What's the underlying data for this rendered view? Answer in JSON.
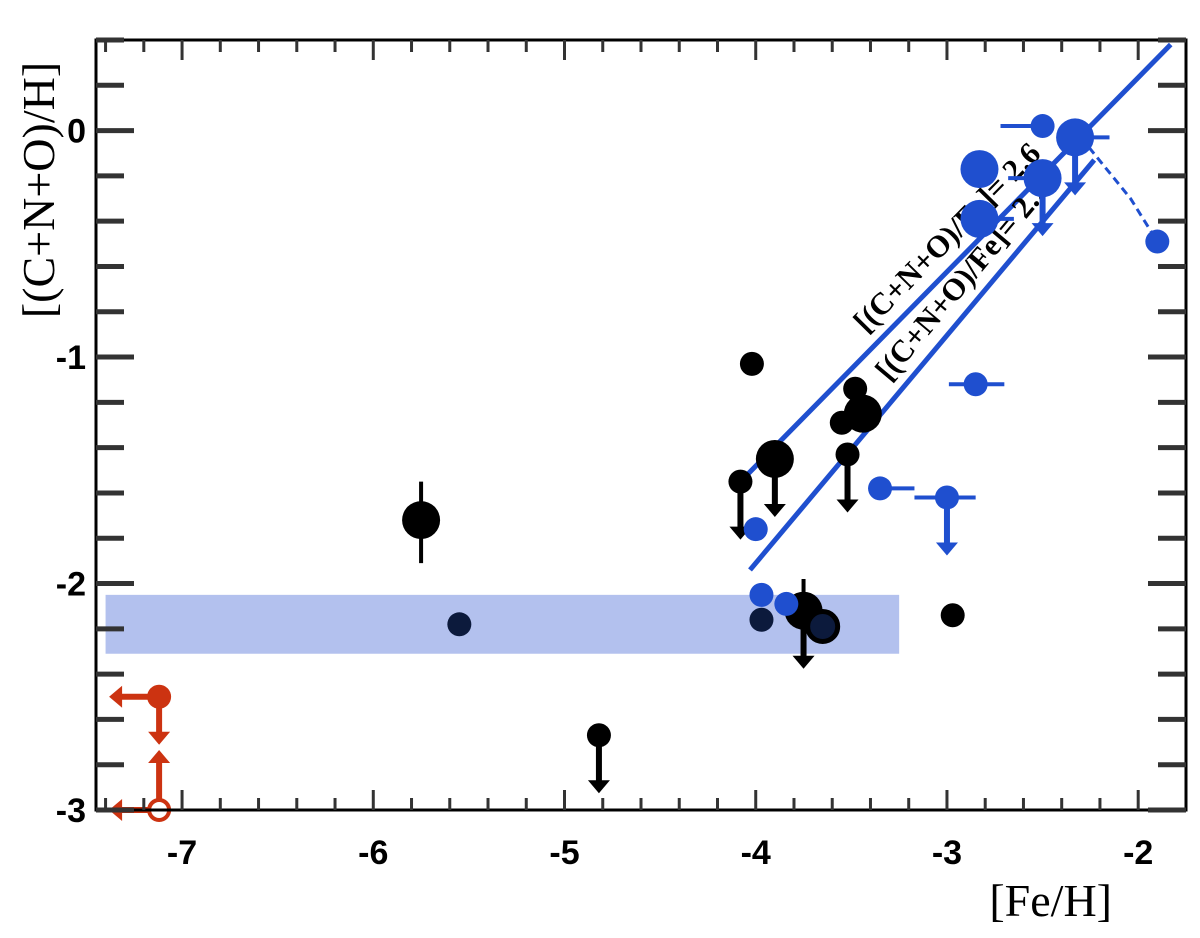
{
  "chart_data": {
    "type": "scatter",
    "xlabel": "[Fe/H]",
    "ylabel": "[(C+N+O)/H]",
    "xlim": [
      -7.45,
      -1.75
    ],
    "ylim": [
      -3.0,
      0.4
    ],
    "x_ticks": [
      -7,
      -6,
      -5,
      -4,
      -3,
      -2
    ],
    "y_ticks": [
      0,
      -1,
      -2,
      -3
    ],
    "x_tick_labels": [
      "-7",
      "-6",
      "-5",
      "-4",
      "-3",
      "-2"
    ],
    "y_tick_labels": [
      "0",
      "-1",
      "-2",
      "-3"
    ],
    "grid": false,
    "colors": {
      "black": "#000000",
      "blue": "#1f4fcf",
      "navy": "#0c1a3c",
      "red": "#cc3311",
      "band": "#b3c1ee"
    },
    "band": {
      "x": [
        -7.4,
        -3.25
      ],
      "y": [
        -2.31,
        -2.05
      ]
    },
    "reference_lines": [
      {
        "label": "[(C+N+O)/Fe]= 2.6",
        "x": [
          -4.08,
          -1.83
        ],
        "y": [
          -1.55,
          0.38
        ]
      },
      {
        "label": "[(C+N+O)/Fe]= 2.2",
        "x": [
          -4.03,
          -2.23
        ],
        "y": [
          -1.94,
          -0.13
        ]
      }
    ],
    "series": [
      {
        "color": "black",
        "points": [
          {
            "x": -5.75,
            "y": -1.72,
            "size": "large",
            "yerr": [
              0.17,
              0.19
            ]
          },
          {
            "x": -4.82,
            "y": -2.67,
            "size": "small",
            "arrow": "down"
          },
          {
            "x": -4.08,
            "y": -1.55,
            "size": "small",
            "arrow": "down"
          },
          {
            "x": -4.02,
            "y": -1.03,
            "size": "small"
          },
          {
            "x": -3.9,
            "y": -1.45,
            "size": "large",
            "arrow": "down"
          },
          {
            "x": -3.75,
            "y": -2.12,
            "size": "large",
            "arrow": "down",
            "yerr": [
              0.14,
              0.0
            ]
          },
          {
            "x": -3.55,
            "y": -1.29,
            "size": "small"
          },
          {
            "x": -3.52,
            "y": -1.43,
            "size": "small",
            "arrow": "down"
          },
          {
            "x": -3.48,
            "y": -1.14,
            "size": "small"
          },
          {
            "x": -3.44,
            "y": -1.25,
            "size": "large"
          },
          {
            "x": -2.97,
            "y": -2.14,
            "size": "small"
          }
        ]
      },
      {
        "color": "blue",
        "points": [
          {
            "x": -4.0,
            "y": -1.76,
            "size": "small"
          },
          {
            "x": -3.97,
            "y": -2.05,
            "size": "small"
          },
          {
            "x": -3.84,
            "y": -2.09,
            "size": "small"
          },
          {
            "x": -3.35,
            "y": -1.58,
            "size": "small",
            "xerr": [
              0.0,
              0.18
            ]
          },
          {
            "x": -3.0,
            "y": -1.62,
            "size": "small",
            "arrow": "down",
            "xerr": [
              0.17,
              0.15
            ]
          },
          {
            "x": -2.85,
            "y": -1.12,
            "size": "small",
            "xerr": [
              0.14,
              0.15
            ]
          },
          {
            "x": -2.83,
            "y": -0.17,
            "size": "large"
          },
          {
            "x": -2.83,
            "y": -0.39,
            "size": "large",
            "xerr": [
              0.0,
              0.18
            ]
          },
          {
            "x": -2.5,
            "y": 0.02,
            "size": "small",
            "xerr": [
              0.22,
              0.0
            ]
          },
          {
            "x": -2.5,
            "y": -0.21,
            "size": "large",
            "arrow": "down",
            "xerr": [
              0.18,
              0.0
            ]
          },
          {
            "x": -2.33,
            "y": -0.03,
            "size": "large",
            "arrow": "down",
            "xerr": [
              0.0,
              0.18
            ]
          },
          {
            "x": -1.9,
            "y": -0.49,
            "size": "small"
          }
        ]
      },
      {
        "color": "navy",
        "points": [
          {
            "x": -5.55,
            "y": -2.18,
            "size": "small"
          },
          {
            "x": -3.97,
            "y": -2.16,
            "size": "small"
          },
          {
            "x": -3.65,
            "y": -2.19,
            "size": "ring"
          }
        ]
      },
      {
        "color": "red",
        "points": [
          {
            "x": -7.12,
            "y": -2.5,
            "size": "small",
            "arrow": "down",
            "left_arrow": true
          },
          {
            "x": -7.12,
            "y": -3.0,
            "size": "open",
            "arrow": "up",
            "left_arrow": true
          }
        ]
      }
    ]
  }
}
